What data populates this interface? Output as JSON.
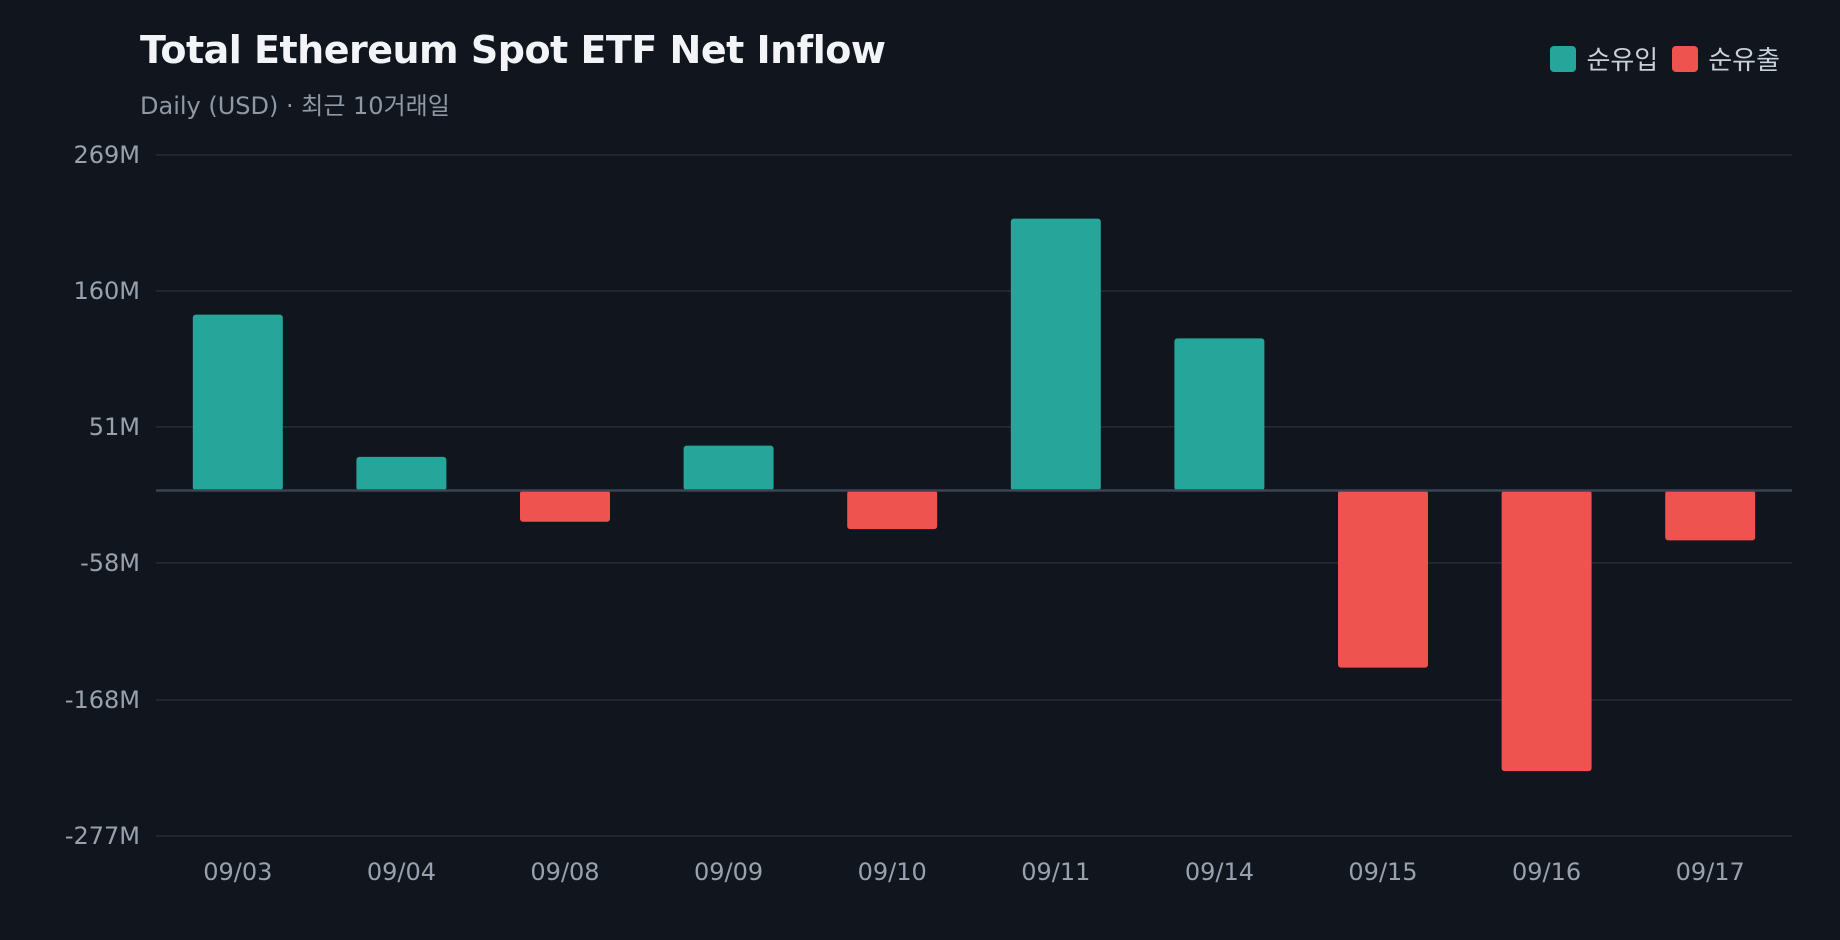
{
  "chart_data": {
    "type": "bar",
    "title": "Total Ethereum Spot ETF Net Inflow",
    "subtitle": "Daily (USD) · 최근 10거래일",
    "legend": [
      {
        "name": "순유입",
        "color": "#26a69a"
      },
      {
        "name": "순유출",
        "color": "#ef5350"
      }
    ],
    "legend_position": "top-right",
    "categories": [
      "09/03",
      "09/04",
      "09/08",
      "09/09",
      "09/10",
      "09/11",
      "09/14",
      "09/15",
      "09/16",
      "09/17"
    ],
    "values": [
      141,
      27,
      -25,
      36,
      -31,
      218,
      122,
      -142,
      -225,
      -40
    ],
    "ylim": [
      -277,
      269
    ],
    "yticks": [
      269,
      160,
      51,
      -58,
      -168,
      -277
    ],
    "ytick_labels": [
      "269M",
      "160M",
      "51M",
      "-58M",
      "-168M",
      "-277M"
    ],
    "grid": true,
    "colors": {
      "positive": "#26a69a",
      "negative": "#ef5350",
      "grid": "#262d37",
      "zero_line": "#3a4452",
      "background": "#11161e"
    }
  }
}
